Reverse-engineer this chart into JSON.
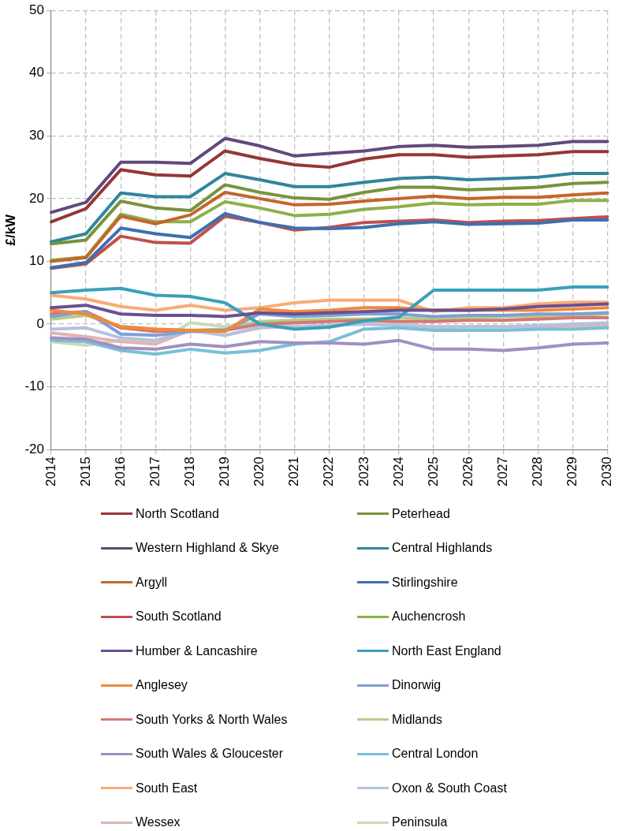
{
  "chart_data": {
    "type": "line",
    "ylabel": "£/kW",
    "categories": [
      "2014",
      "2015",
      "2016",
      "2017",
      "2018",
      "2019",
      "2020",
      "2021",
      "2022",
      "2023",
      "2024",
      "2025",
      "2026",
      "2027",
      "2028",
      "2029",
      "2030"
    ],
    "ylim": [
      -20,
      50
    ],
    "yticks": [
      -20,
      -10,
      0,
      10,
      20,
      30,
      40,
      50
    ],
    "grid": true,
    "legend": "bottom",
    "marker": "none",
    "line_style": "solid",
    "series": [
      {
        "name": "North Scotland",
        "color": "#953735",
        "values": [
          16.3,
          18.4,
          24.6,
          23.8,
          23.6,
          27.6,
          26.4,
          25.4,
          25.0,
          26.3,
          27.0,
          27.0,
          26.6,
          26.8,
          27.0,
          27.5,
          27.5
        ]
      },
      {
        "name": "Peterhead",
        "color": "#77933c",
        "values": [
          12.8,
          13.4,
          19.6,
          18.5,
          18.1,
          22.2,
          21.0,
          20.1,
          19.9,
          21.0,
          21.8,
          21.8,
          21.4,
          21.6,
          21.8,
          22.4,
          22.6
        ]
      },
      {
        "name": "Western Highland & Skye",
        "color": "#604a7b",
        "values": [
          17.8,
          19.4,
          25.8,
          25.8,
          25.6,
          29.6,
          28.4,
          26.8,
          27.2,
          27.6,
          28.3,
          28.5,
          28.2,
          28.3,
          28.5,
          29.1,
          29.1
        ]
      },
      {
        "name": "Central Highlands",
        "color": "#31859c",
        "values": [
          13.1,
          14.4,
          20.9,
          20.3,
          20.3,
          24.0,
          23.0,
          21.9,
          21.9,
          22.6,
          23.2,
          23.4,
          23.0,
          23.2,
          23.4,
          24.0,
          24.0
        ]
      },
      {
        "name": "Argyll",
        "color": "#c3662d",
        "values": [
          10.0,
          10.6,
          17.2,
          16.0,
          17.4,
          21.0,
          20.0,
          19.0,
          19.1,
          19.6,
          20.0,
          20.4,
          20.0,
          20.2,
          20.2,
          20.6,
          20.9
        ]
      },
      {
        "name": "Stirlingshire",
        "color": "#3e6fb0",
        "values": [
          9.0,
          9.8,
          15.3,
          14.4,
          13.8,
          17.6,
          16.2,
          15.3,
          15.2,
          15.4,
          16.0,
          16.3,
          15.9,
          16.0,
          16.1,
          16.6,
          16.6
        ]
      },
      {
        "name": "South Scotland",
        "color": "#c0504d",
        "values": [
          8.9,
          9.6,
          14.0,
          13.0,
          12.9,
          17.2,
          16.2,
          15.0,
          15.4,
          16.2,
          16.4,
          16.6,
          16.2,
          16.4,
          16.5,
          16.8,
          17.1
        ]
      },
      {
        "name": "Auchencrosh",
        "color": "#8db04a",
        "values": [
          10.2,
          10.7,
          17.5,
          16.3,
          16.3,
          19.5,
          18.5,
          17.3,
          17.5,
          18.3,
          18.7,
          19.3,
          19.0,
          19.1,
          19.1,
          19.7,
          19.7
        ]
      },
      {
        "name": "Humber & Lancashire",
        "color": "#6c4f92",
        "values": [
          2.6,
          3.0,
          1.6,
          1.4,
          1.4,
          1.2,
          1.8,
          1.6,
          1.8,
          2.0,
          2.2,
          2.2,
          2.2,
          2.4,
          2.8,
          3.0,
          3.2
        ]
      },
      {
        "name": "North East England",
        "color": "#3aa0b8",
        "values": [
          5.0,
          5.4,
          5.7,
          4.6,
          4.4,
          3.4,
          0.0,
          -0.8,
          -0.5,
          0.5,
          1.1,
          5.4,
          5.4,
          5.4,
          5.4,
          5.9,
          5.9
        ]
      },
      {
        "name": "Anglesey",
        "color": "#f08a3a",
        "values": [
          2.2,
          1.6,
          -0.4,
          -0.8,
          -1.0,
          -1.2,
          2.4,
          2.0,
          2.2,
          2.6,
          2.6,
          2.2,
          2.2,
          2.2,
          2.2,
          2.4,
          2.6
        ]
      },
      {
        "name": "Dinorwig",
        "color": "#7f9fd4",
        "values": [
          1.2,
          2.0,
          -1.6,
          -1.8,
          -1.2,
          -1.0,
          1.6,
          1.2,
          1.4,
          1.6,
          1.6,
          1.2,
          1.4,
          1.4,
          1.6,
          1.6,
          1.8
        ]
      },
      {
        "name": "South Yorks & North Wales",
        "color": "#d47875",
        "values": [
          1.6,
          2.0,
          -0.6,
          -1.2,
          -1.0,
          -1.0,
          0.0,
          0.2,
          0.4,
          0.6,
          0.4,
          0.4,
          0.6,
          0.6,
          0.8,
          1.0,
          1.0
        ]
      },
      {
        "name": "Midlands",
        "color": "#b3cd88",
        "values": [
          0.8,
          1.4,
          -0.4,
          -0.8,
          -1.0,
          -0.8,
          0.4,
          0.6,
          0.8,
          0.8,
          1.0,
          0.8,
          1.0,
          1.2,
          1.2,
          1.4,
          1.6
        ]
      },
      {
        "name": "South Wales & Gloucester",
        "color": "#a28fc0",
        "values": [
          -2.2,
          -2.4,
          -3.8,
          -4.0,
          -3.2,
          -3.6,
          -2.8,
          -3.0,
          -3.0,
          -3.2,
          -2.6,
          -4.0,
          -4.0,
          -4.2,
          -3.8,
          -3.2,
          -3.0
        ]
      },
      {
        "name": "Central London",
        "color": "#78c0d8",
        "values": [
          -2.6,
          -2.8,
          -4.2,
          -4.8,
          -4.0,
          -4.6,
          -4.2,
          -3.2,
          -2.8,
          -0.8,
          -0.6,
          -1.0,
          -1.0,
          -1.0,
          -0.8,
          -0.8,
          -0.6
        ]
      },
      {
        "name": "South East",
        "color": "#f9ab78",
        "values": [
          4.6,
          4.0,
          2.8,
          2.2,
          3.0,
          2.2,
          2.6,
          3.4,
          3.8,
          3.8,
          3.8,
          2.0,
          2.6,
          2.6,
          3.2,
          3.5,
          3.5
        ]
      },
      {
        "name": "Oxon & South Coast",
        "color": "#b4c2e0",
        "values": [
          -0.8,
          -0.6,
          -2.2,
          -2.6,
          -1.0,
          -1.8,
          -0.4,
          -0.4,
          -0.2,
          0.0,
          -0.2,
          -0.4,
          -0.4,
          -0.4,
          -0.2,
          0.0,
          0.2
        ]
      },
      {
        "name": "Wessex",
        "color": "#e0b4b3",
        "values": [
          -1.4,
          -2.0,
          -2.8,
          -3.2,
          -1.0,
          -1.8,
          -0.6,
          -0.4,
          -0.2,
          0.0,
          -0.2,
          -0.6,
          -0.4,
          -0.4,
          -0.4,
          -0.2,
          -0.2
        ]
      },
      {
        "name": "Peninsula",
        "color": "#c9dbb5",
        "values": [
          -2.8,
          -3.4,
          -2.6,
          -3.0,
          0.2,
          -0.4,
          0.4,
          0.4,
          0.6,
          0.6,
          0.2,
          -0.6,
          -0.6,
          -0.6,
          -0.4,
          -0.4,
          -0.4
        ]
      }
    ]
  }
}
